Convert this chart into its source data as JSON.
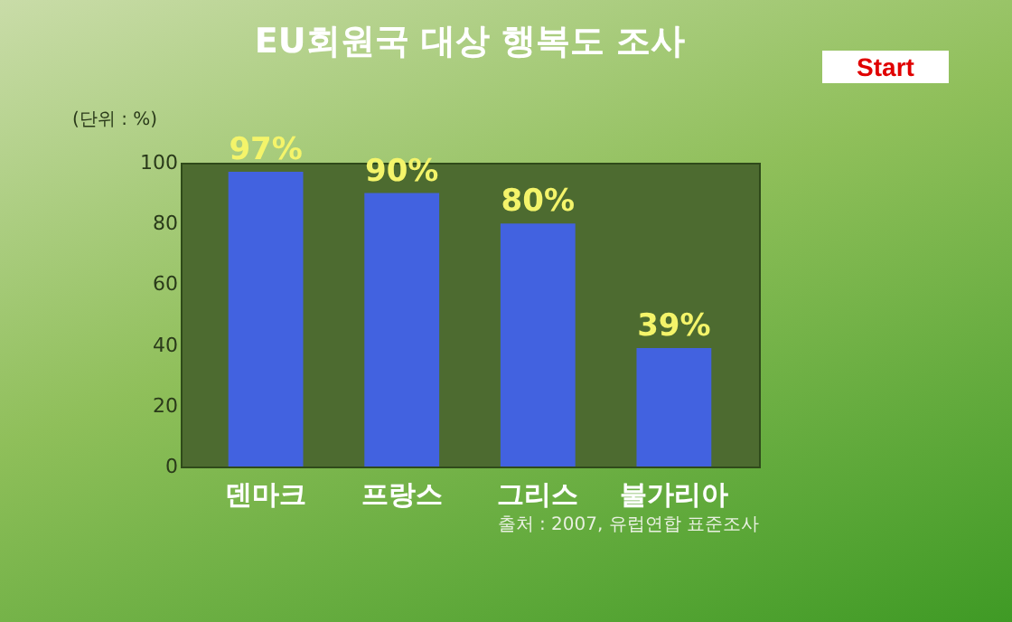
{
  "chart_data": {
    "type": "bar",
    "title": "EU회원국 대상 행복도 조사",
    "categories": [
      "덴마크",
      "프랑스",
      "그리스",
      "불가리아"
    ],
    "values": [
      97,
      90,
      80,
      39
    ],
    "value_labels": [
      "97%",
      "90%",
      "80%",
      "39%"
    ],
    "color": "#4262e0",
    "ylim": [
      0,
      100
    ],
    "yticks": [
      0,
      20,
      40,
      60,
      80,
      100
    ],
    "grid": false,
    "annotations": [
      "(단위 : %)",
      "출처 : 2007, 유럽연합 표준조사",
      "Start"
    ]
  }
}
